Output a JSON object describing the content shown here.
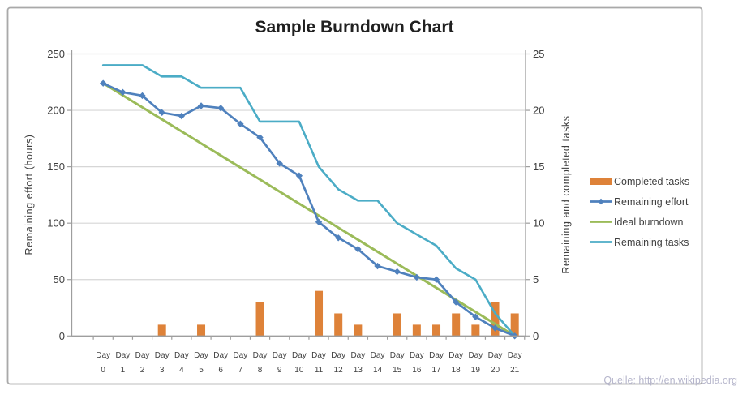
{
  "source_note": "Quelle: http://en.wikipedia.org",
  "colors": {
    "bar": "#DE8239",
    "effort": "#4F81BD",
    "ideal": "#9BBB59",
    "tasks": "#4BACC6",
    "grid": "#D6D6D6",
    "axis": "#9E9E9E",
    "text": "#3F3F3F",
    "title": "#202020",
    "border": "#A9A9A9",
    "source": "#B5B5CB"
  },
  "legend": [
    {
      "label": "Completed tasks",
      "swatch": "bar",
      "color": "bar"
    },
    {
      "label": "Remaining effort",
      "swatch": "line-diamond",
      "color": "effort"
    },
    {
      "label": "Ideal burndown",
      "swatch": "line",
      "color": "ideal"
    },
    {
      "label": "Remaining tasks",
      "swatch": "line",
      "color": "tasks"
    }
  ],
  "chart_data": {
    "type": "combo",
    "title": "Sample Burndown Chart",
    "x_tick_prefix": "Day",
    "x": [
      0,
      1,
      2,
      3,
      4,
      5,
      6,
      7,
      8,
      9,
      10,
      11,
      12,
      13,
      14,
      15,
      16,
      17,
      18,
      19,
      20,
      21
    ],
    "left_axis": {
      "label": "Remaining effort (hours)",
      "min": 0,
      "max": 250,
      "step": 50
    },
    "right_axis": {
      "label": "Remaining and completed tasks",
      "min": 0,
      "max": 25,
      "step": 5
    },
    "grid": "horizontal",
    "legend_position": "right",
    "series": [
      {
        "name": "Completed tasks",
        "type": "bar",
        "axis": "right",
        "values": [
          0,
          0,
          0,
          1,
          0,
          1,
          0,
          0,
          3,
          0,
          0,
          4,
          2,
          1,
          0,
          2,
          1,
          1,
          2,
          1,
          3,
          2
        ]
      },
      {
        "name": "Ideal burndown",
        "type": "line",
        "axis": "left",
        "values": [
          224,
          213.33,
          202.67,
          192,
          181.33,
          170.67,
          160,
          149.33,
          138.67,
          128,
          117.33,
          106.67,
          96,
          85.33,
          74.67,
          64,
          53.33,
          42.67,
          32,
          21.33,
          10.67,
          0
        ]
      },
      {
        "name": "Remaining tasks",
        "type": "line",
        "axis": "right",
        "values": [
          24,
          24,
          24,
          23,
          23,
          22,
          22,
          22,
          19,
          19,
          19,
          15,
          13,
          12,
          12,
          10,
          9,
          8,
          6,
          5,
          2,
          0
        ]
      },
      {
        "name": "Remaining effort",
        "type": "line-diamond",
        "axis": "left",
        "values": [
          224,
          216,
          213,
          198,
          195,
          204,
          202,
          188,
          176,
          153,
          142,
          101,
          87,
          77,
          62,
          57,
          52,
          50,
          30,
          17,
          7,
          0
        ]
      }
    ]
  }
}
